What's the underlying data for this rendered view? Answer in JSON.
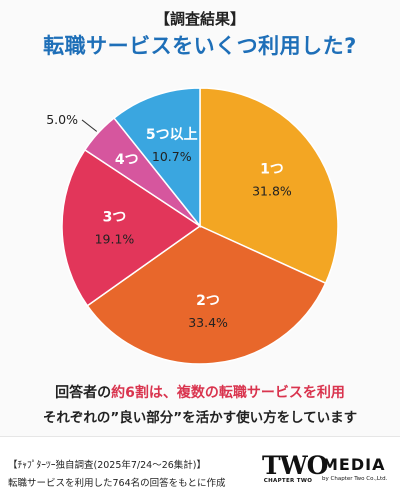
{
  "header": {
    "tag": "【調査結果】",
    "title": "転職サービスをいくつ利用した?"
  },
  "colors": {
    "title_blue": "#1e6fb8",
    "accent_red": "#d9344e",
    "one": "#f3a623",
    "two": "#e8672b",
    "three": "#e2365a",
    "four": "#d6569e",
    "five_plus": "#3aa6e0"
  },
  "chart_data": {
    "type": "pie",
    "title": "転職サービスをいくつ利用した?",
    "slices": [
      {
        "label": "1つ",
        "value": 31.8,
        "value_label": "31.8%",
        "color": "#f3a623",
        "text_color": "#ffffff",
        "value_color": "#222222"
      },
      {
        "label": "2つ",
        "value": 33.4,
        "value_label": "33.4%",
        "color": "#e8672b",
        "text_color": "#ffffff",
        "value_color": "#222222"
      },
      {
        "label": "3つ",
        "value": 19.1,
        "value_label": "19.1%",
        "color": "#e2365a",
        "text_color": "#ffffff",
        "value_color": "#222222"
      },
      {
        "label": "4つ",
        "value": 5.0,
        "value_label": "5.0%",
        "color": "#d6569e",
        "text_color": "#ffffff",
        "value_color": "#222222",
        "label_outside": true
      },
      {
        "label": "5つ以上",
        "value": 10.7,
        "value_label": "10.7%",
        "color": "#3aa6e0",
        "text_color": "#ffffff",
        "value_color": "#222222"
      }
    ],
    "start_angle_deg": 0,
    "direction": "clockwise"
  },
  "summary": {
    "line1_prefix": "回答者の",
    "line1_accent": "約6割は、複数の転職サービスを利用",
    "line2": "それぞれの”良い部分”を活かす使い方をしています"
  },
  "footer": {
    "note1": "【ﾁｬﾌﾟﾀｰﾂｰ独自調査(2025年7/24〜26集計)】",
    "note2": "転職サービスを利用した764名の回答をもとに作成",
    "logo_two_big": "TWO",
    "logo_two_small": "CHAPTER TWO",
    "logo_media_big": "MEDIA",
    "logo_media_small": "by Chapter Two Co.,Ltd."
  }
}
